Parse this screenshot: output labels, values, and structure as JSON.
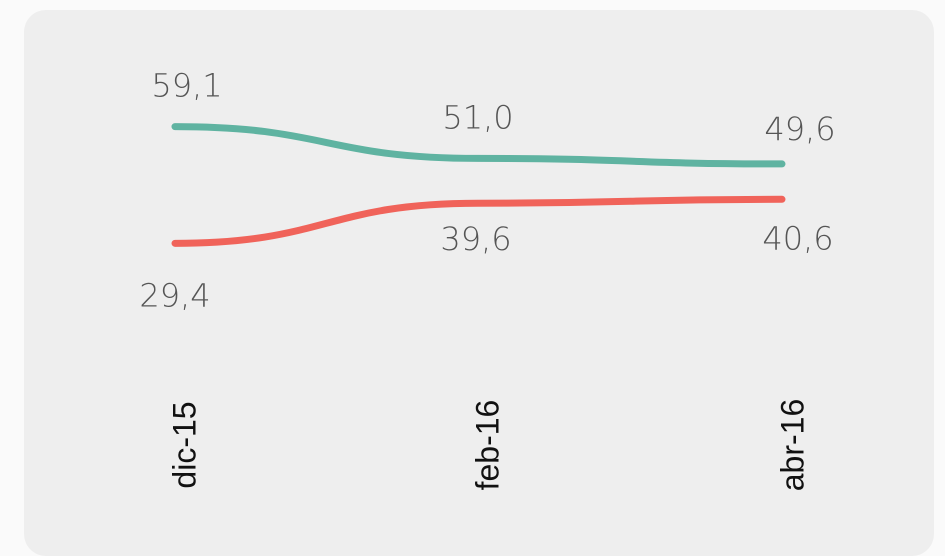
{
  "chart_data": {
    "type": "line",
    "x": [
      "dic-15",
      "feb-16",
      "abr-16"
    ],
    "series": [
      {
        "values": [
          59.1,
          51.0,
          49.6
        ],
        "labels": [
          "59,1",
          "51,0",
          "49,6"
        ],
        "color": "#5fb3a1"
      },
      {
        "values": [
          29.4,
          39.6,
          40.6
        ],
        "labels": [
          "29,4",
          "39,6",
          "40,6"
        ],
        "color": "#f0635a"
      }
    ],
    "title": "",
    "xlabel": "",
    "ylabel": "",
    "grid": false,
    "legend": "none"
  }
}
